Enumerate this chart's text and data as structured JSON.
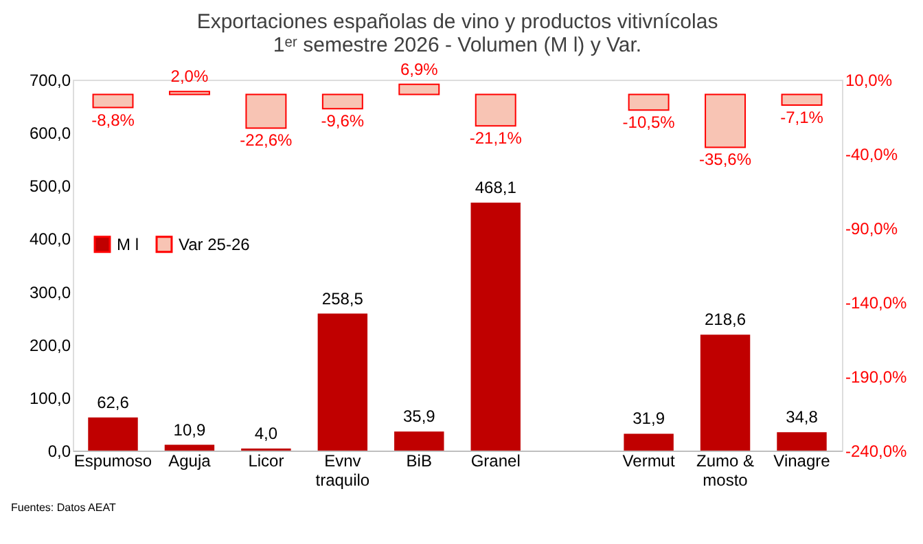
{
  "chart_data": {
    "type": "bar",
    "title": [
      "Exportaciones españolas de vino y productos vitivnícolas",
      "1ᵉʳ semestre 2026 - Volumen (M l) y Var."
    ],
    "categories": [
      "Espumoso",
      "Aguja",
      "Licor",
      "Evnv traquilo",
      "BiB",
      "Granel",
      null,
      "Vermut",
      "Zumo & mosto",
      "Vinagre"
    ],
    "series": [
      {
        "name": "M l",
        "color": "#c00000",
        "values": [
          62.6,
          10.9,
          4.0,
          258.5,
          35.9,
          468.1,
          null,
          31.9,
          218.6,
          34.8
        ],
        "value_labels": [
          "62,6",
          "10,9",
          "4,0",
          "258,5",
          "35,9",
          "468,1",
          null,
          "31,9",
          "218,6",
          "34,8"
        ]
      },
      {
        "name": "Var 25-26",
        "color": "#f8c4b4",
        "axis": "y2",
        "values": [
          -8.8,
          2.0,
          -22.6,
          -9.6,
          6.9,
          -21.1,
          null,
          -10.5,
          -35.6,
          -7.1
        ],
        "value_labels": [
          "-8,8%",
          "2,0%",
          "-22,6%",
          "-9,6%",
          "6,9%",
          "-21,1%",
          null,
          "-10,5%",
          "-35,6%",
          "-7,1%"
        ]
      }
    ],
    "ylim": [
      0,
      700
    ],
    "yticks": [
      {
        "value": 0,
        "label": "0,0"
      },
      {
        "value": 100,
        "label": "100,0"
      },
      {
        "value": 200,
        "label": "200,0"
      },
      {
        "value": 300,
        "label": "300,0"
      },
      {
        "value": 400,
        "label": "400,0"
      },
      {
        "value": 500,
        "label": "500,0"
      },
      {
        "value": 600,
        "label": "600,0"
      },
      {
        "value": 700,
        "label": "700,0"
      }
    ],
    "y2lim": [
      -240,
      10
    ],
    "y2ticks": [
      {
        "value": -240,
        "label": "-240,0%"
      },
      {
        "value": -190,
        "label": "-190,0%"
      },
      {
        "value": -140,
        "label": "-140,0%"
      },
      {
        "value": -90,
        "label": "-90,0%"
      },
      {
        "value": -40,
        "label": "-40,0%"
      },
      {
        "value": 10,
        "label": "10,0%"
      }
    ],
    "grid": false,
    "legend": "left",
    "annotations": [
      "Fuentes: Datos AEAT"
    ]
  }
}
